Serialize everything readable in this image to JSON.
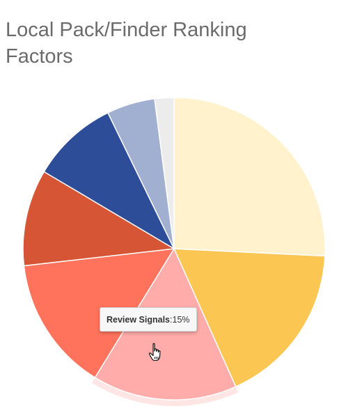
{
  "title": "Local Pack/Finder Ranking Factors",
  "chart_data": {
    "type": "pie",
    "slices": [
      {
        "value": 25,
        "color": "#fff2cc"
      },
      {
        "value": 17,
        "color": "#fbc652"
      },
      {
        "value": 15,
        "color": "#ffacaa",
        "label": "Review Signals"
      },
      {
        "value": 14,
        "color": "#ff735c"
      },
      {
        "value": 10,
        "color": "#d55535"
      },
      {
        "value": 9,
        "color": "#2e4d99"
      },
      {
        "value": 5,
        "color": "#a1afd0"
      },
      {
        "value": 2,
        "color": "#ececec"
      }
    ],
    "highlighted": "Review Signals"
  },
  "tooltip": {
    "label": "Review Signals",
    "separator": ": ",
    "value": "15%"
  },
  "cursor": {
    "icon": "hand-pointer-icon"
  }
}
